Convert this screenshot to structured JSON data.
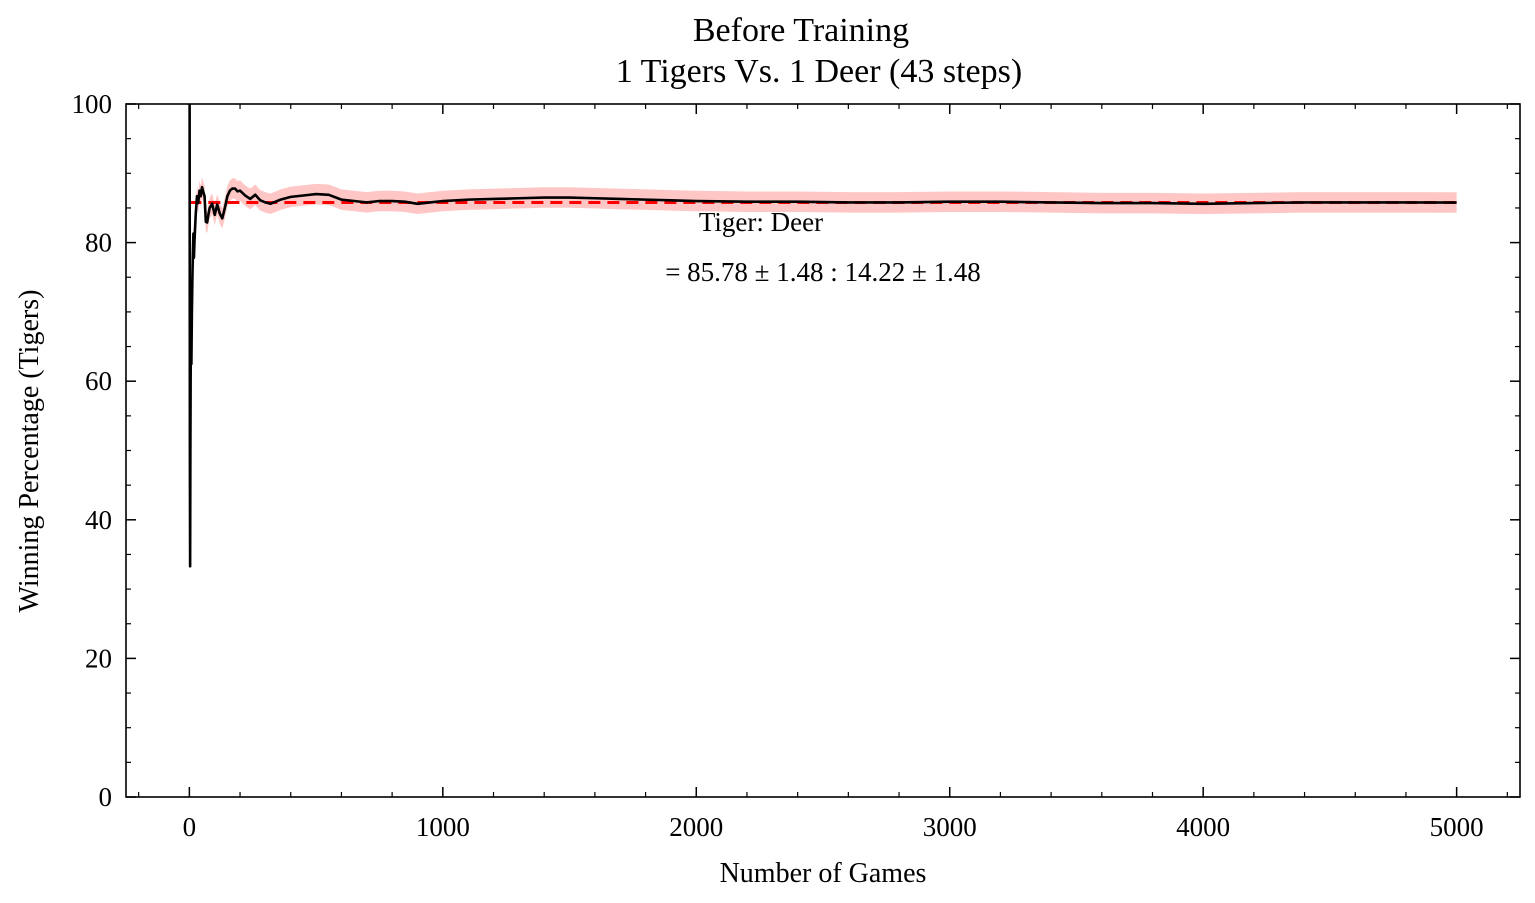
{
  "chart_data": {
    "type": "line",
    "title": "Before Training",
    "subtitle": "1 Tigers Vs. 1 Deer (43 steps)",
    "xlabel": "Number of Games",
    "ylabel": "Winning Percentage (Tigers)",
    "xlim": [
      -250,
      5250
    ],
    "ylim": [
      0,
      100
    ],
    "x_ticks": [
      0,
      1000,
      2000,
      3000,
      4000,
      5000
    ],
    "x_tick_labels": [
      "0",
      "1000",
      "2000",
      "3000",
      "4000",
      "5000"
    ],
    "y_ticks": [
      0,
      20,
      40,
      60,
      80,
      100
    ],
    "y_tick_labels": [
      "0",
      "20",
      "40",
      "60",
      "80",
      "100"
    ],
    "grid": false,
    "reference_line": {
      "y": 85.78,
      "color": "#ff0000",
      "style": "dashed",
      "x_start": 0,
      "x_end": 5000
    },
    "band_color": "#ffb3b3",
    "band_halfwidth": 1.48,
    "series": [
      {
        "color": "#000000",
        "x": [
          1,
          2,
          3,
          4,
          5,
          6,
          7,
          8,
          10,
          12,
          14,
          16,
          18,
          20,
          25,
          30,
          35,
          40,
          45,
          50,
          55,
          60,
          65,
          70,
          75,
          80,
          90,
          100,
          110,
          120,
          130,
          140,
          150,
          160,
          170,
          180,
          190,
          200,
          220,
          240,
          260,
          280,
          300,
          320,
          340,
          360,
          380,
          400,
          450,
          500,
          550,
          600,
          650,
          700,
          750,
          800,
          850,
          900,
          950,
          1000,
          1100,
          1200,
          1300,
          1400,
          1500,
          1600,
          1700,
          1800,
          1900,
          2000,
          2200,
          2400,
          2600,
          2800,
          3000,
          3200,
          3400,
          3600,
          3800,
          4000,
          4200,
          4400,
          4600,
          4800,
          5000
        ],
        "y": [
          100,
          50,
          33.3,
          50,
          60,
          66.7,
          71.4,
          62.5,
          70,
          75,
          78.6,
          81.3,
          77.8,
          80,
          84,
          86.7,
          85.7,
          87.5,
          86.7,
          88,
          87.3,
          86.7,
          83,
          82.9,
          84,
          85,
          85.6,
          84,
          85.5,
          84.2,
          83.5,
          85,
          86.7,
          87.5,
          87.8,
          87.8,
          87.4,
          87.5,
          86.8,
          86.3,
          86.9,
          86.1,
          85.8,
          85.6,
          85.9,
          86.2,
          86.4,
          86.6,
          86.8,
          87,
          86.9,
          86.2,
          86.0,
          85.8,
          86.0,
          86.0,
          85.9,
          85.6,
          85.8,
          86.0,
          86.2,
          86.3,
          86.4,
          86.5,
          86.5,
          86.4,
          86.3,
          86.2,
          86.1,
          86.0,
          85.9,
          85.9,
          85.8,
          85.8,
          85.9,
          85.9,
          85.8,
          85.7,
          85.7,
          85.6,
          85.7,
          85.8,
          85.8,
          85.8,
          85.78
        ]
      }
    ],
    "annotation_line1": "Tiger: Deer",
    "annotation_line2": "= 85.78 ± 1.48 : 14.22 ± 1.48"
  }
}
